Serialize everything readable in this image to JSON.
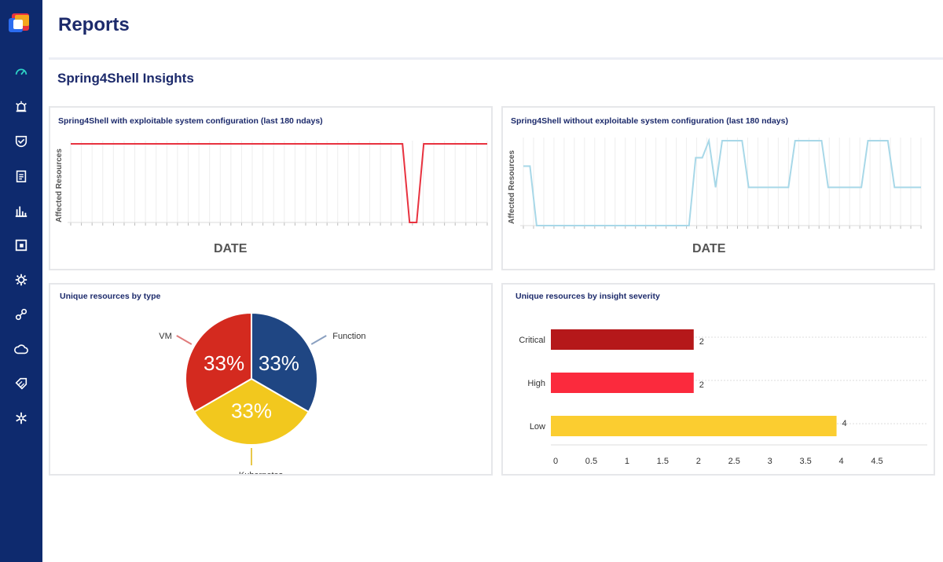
{
  "page": {
    "title": "Reports",
    "section_title": "Spring4Shell Insights"
  },
  "sidebar": {
    "items": [
      {
        "icon": "gauge-icon"
      },
      {
        "icon": "alarm-icon"
      },
      {
        "icon": "shield-icon"
      },
      {
        "icon": "clipboard-icon"
      },
      {
        "icon": "bar-chart-icon"
      },
      {
        "icon": "box-icon"
      },
      {
        "icon": "gear-icon"
      },
      {
        "icon": "link-icon"
      },
      {
        "icon": "cloud-icon"
      },
      {
        "icon": "tag-icon"
      },
      {
        "icon": "asterisk-icon"
      }
    ]
  },
  "cards": {
    "exploitable": {
      "title": "Spring4Shell with exploitable system configuration (last 180 ndays)",
      "xlabel": "DATE",
      "ylabel": "Affected Resources"
    },
    "non_exploitable": {
      "title": "Spring4Shell without exploitable system configuration (last 180 ndays)",
      "xlabel": "DATE",
      "ylabel": "Affected Resources"
    },
    "by_type": {
      "title": "Unique resources by type"
    },
    "by_severity": {
      "title": "Unique resources by insight severity"
    }
  },
  "chart_data": [
    {
      "type": "line",
      "title": "Spring4Shell with exploitable system configuration (last 180 ndays)",
      "xlabel": "DATE",
      "ylabel": "Affected Resources",
      "color": "#e8323f",
      "series": [
        {
          "values": [
            1,
            1,
            1,
            1,
            1,
            1,
            1,
            1,
            1,
            1,
            1,
            1,
            1,
            1,
            1,
            1,
            1,
            1,
            1,
            1,
            1,
            1,
            1,
            1,
            1,
            1,
            1,
            1,
            1,
            1,
            1,
            1,
            1,
            1,
            1,
            1,
            1,
            1,
            1,
            1,
            1,
            1,
            1,
            1,
            1,
            1,
            1,
            1,
            0,
            0,
            1,
            1,
            1,
            1,
            1,
            1,
            1,
            1,
            1,
            1
          ]
        }
      ]
    },
    {
      "type": "line",
      "title": "Spring4Shell without exploitable system configuration (last 180 ndays)",
      "xlabel": "DATE",
      "ylabel": "Affected Resources",
      "color": "#a8d8e8",
      "series": [
        {
          "values": [
            0.7,
            0.7,
            0,
            0,
            0,
            0,
            0,
            0,
            0,
            0,
            0,
            0,
            0,
            0,
            0,
            0,
            0,
            0,
            0,
            0,
            0,
            0,
            0,
            0,
            0,
            0,
            0.8,
            0.8,
            1,
            0.45,
            1,
            1,
            1,
            1,
            0.45,
            0.45,
            0.45,
            0.45,
            0.45,
            0.45,
            0.45,
            1,
            1,
            1,
            1,
            1,
            0.45,
            0.45,
            0.45,
            0.45,
            0.45,
            0.45,
            1,
            1,
            1,
            1,
            0.45,
            0.45,
            0.45,
            0.45,
            0.45
          ]
        }
      ]
    },
    {
      "type": "pie",
      "title": "Unique resources by type",
      "categories": [
        "VM",
        "Function",
        "Kubernetes"
      ],
      "values": [
        33,
        33,
        33
      ],
      "labels": [
        "33%",
        "33%",
        "33%"
      ],
      "colors": [
        "#d42a1f",
        "#1f4683",
        "#f2c81e"
      ]
    },
    {
      "type": "bar",
      "title": "Unique resources by insight severity",
      "categories": [
        "Critical",
        "High",
        "Low"
      ],
      "values": [
        2,
        2,
        4
      ],
      "colors": [
        "#b5181a",
        "#fb2a3d",
        "#fbcd30"
      ],
      "xticks": [
        "0",
        "0.5",
        "1",
        "1.5",
        "2",
        "2.5",
        "3",
        "3.5",
        "4",
        "4.5"
      ],
      "xlim": [
        0,
        4.5
      ]
    }
  ]
}
